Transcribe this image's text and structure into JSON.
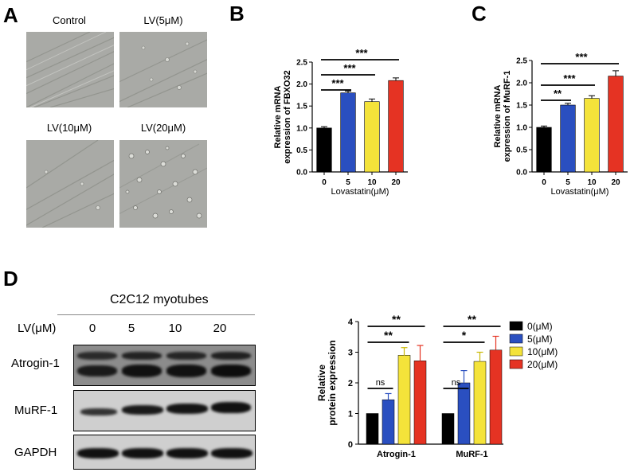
{
  "panels": {
    "a": "A",
    "b": "B",
    "c": "C",
    "d": "D"
  },
  "micrographs": [
    {
      "label": "Control"
    },
    {
      "label": "LV(5μM)"
    },
    {
      "label": "LV(10μM)"
    },
    {
      "label": "LV(20μM)"
    }
  ],
  "western_blot": {
    "cell_line": "C2C12 myotubes",
    "treatment_label": "LV(μM)",
    "concentrations": [
      "0",
      "5",
      "10",
      "20"
    ],
    "rows": [
      {
        "label": "Atrogin-1"
      },
      {
        "label": "MuRF-1"
      },
      {
        "label": "GAPDH"
      }
    ]
  },
  "chart_data": [
    {
      "type": "bar",
      "id": "B",
      "categories": [
        "0",
        "5",
        "10",
        "20"
      ],
      "values": [
        1.0,
        1.8,
        1.6,
        2.08
      ],
      "errors": [
        0.03,
        0.04,
        0.06,
        0.06
      ],
      "colors": [
        "#000000",
        "#2a4fc0",
        "#f4e33a",
        "#e53323"
      ],
      "xlabel": "Lovastatin(μM)",
      "ylabel_lines": [
        "Relative mRNA",
        "expression of FBXO32"
      ],
      "ylim": [
        0,
        2.5
      ],
      "yticks": [
        "0.0",
        "0.5",
        "1.0",
        "1.5",
        "2.0",
        "2.5"
      ],
      "significance": [
        {
          "from": 0,
          "to": 1,
          "label": "***"
        },
        {
          "from": 0,
          "to": 2,
          "label": "***"
        },
        {
          "from": 0,
          "to": 3,
          "label": "***"
        }
      ]
    },
    {
      "type": "bar",
      "id": "C",
      "categories": [
        "0",
        "5",
        "10",
        "20"
      ],
      "values": [
        1.0,
        1.5,
        1.65,
        2.15
      ],
      "errors": [
        0.03,
        0.04,
        0.06,
        0.12
      ],
      "colors": [
        "#000000",
        "#2a4fc0",
        "#f4e33a",
        "#e53323"
      ],
      "xlabel": "Lovastatin(μM)",
      "ylabel_lines": [
        "Relative mRNA",
        "expression of MuRF-1"
      ],
      "ylim": [
        0,
        2.5
      ],
      "yticks": [
        "0.0",
        "0.5",
        "1.0",
        "1.5",
        "2.0",
        "2.5"
      ],
      "significance": [
        {
          "from": 0,
          "to": 1,
          "label": "**"
        },
        {
          "from": 0,
          "to": 2,
          "label": "***"
        },
        {
          "from": 0,
          "to": 3,
          "label": "***"
        }
      ]
    },
    {
      "type": "bar",
      "id": "D",
      "groups": [
        "Atrogin-1",
        "MuRF-1"
      ],
      "series": [
        {
          "name": "0(μM)",
          "color": "#000000",
          "values": [
            1.0,
            1.0
          ],
          "errors": [
            0,
            0
          ]
        },
        {
          "name": "5(μM)",
          "color": "#2a4fc0",
          "values": [
            1.45,
            2.0
          ],
          "errors": [
            0.2,
            0.4
          ]
        },
        {
          "name": "10(μM)",
          "color": "#f4e33a",
          "values": [
            2.9,
            2.7
          ],
          "errors": [
            0.25,
            0.3
          ]
        },
        {
          "name": "20(μM)",
          "color": "#e53323",
          "values": [
            2.72,
            3.07
          ],
          "errors": [
            0.5,
            0.45
          ]
        }
      ],
      "ylabel_lines": [
        "Relative",
        "protein expression"
      ],
      "ylim": [
        0,
        4
      ],
      "yticks": [
        "0",
        "1",
        "2",
        "3",
        "4"
      ],
      "legend_position": "right",
      "significance": [
        {
          "group": 0,
          "from": 0,
          "to": 1,
          "label": "ns"
        },
        {
          "group": 0,
          "from": 0,
          "to": 2,
          "label": "**"
        },
        {
          "group": 0,
          "from": 0,
          "to": 3,
          "label": "**"
        },
        {
          "group": 1,
          "from": 0,
          "to": 1,
          "label": "ns"
        },
        {
          "group": 1,
          "from": 0,
          "to": 2,
          "label": "*"
        },
        {
          "group": 1,
          "from": 0,
          "to": 3,
          "label": "**"
        }
      ]
    }
  ]
}
